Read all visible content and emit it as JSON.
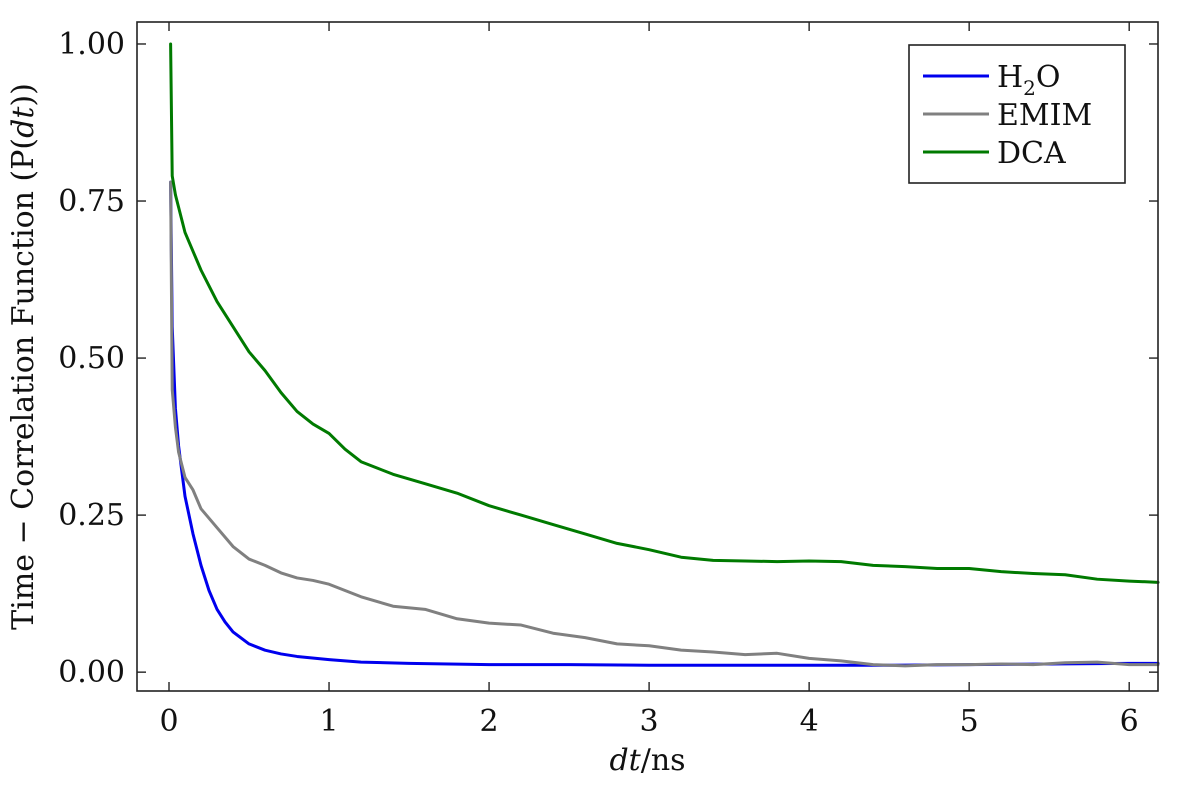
{
  "chart_data": {
    "type": "line",
    "xlabel": "dt/ns",
    "ylabel": "Time − Correlation Function (P(dt))",
    "xlim": [
      -0.2,
      6.18
    ],
    "ylim": [
      -0.03,
      1.035
    ],
    "xticks": [
      0,
      1,
      2,
      3,
      4,
      5,
      6
    ],
    "xtick_labels": [
      "0",
      "1",
      "2",
      "3",
      "4",
      "5",
      "6"
    ],
    "yticks": [
      0.0,
      0.25,
      0.5,
      0.75,
      1.0
    ],
    "ytick_labels": [
      "0.00",
      "0.25",
      "0.50",
      "0.75",
      "1.00"
    ],
    "grid": false,
    "legend_position": "top-right",
    "series": [
      {
        "name": "H2O",
        "legend_label": {
          "main": "H",
          "sub": "2",
          "tail": "O"
        },
        "color": "#0000ee",
        "x": [
          0.01,
          0.02,
          0.04,
          0.06,
          0.08,
          0.1,
          0.15,
          0.2,
          0.25,
          0.3,
          0.35,
          0.4,
          0.5,
          0.6,
          0.7,
          0.8,
          1.0,
          1.2,
          1.5,
          2.0,
          2.5,
          3.0,
          3.5,
          4.0,
          4.5,
          5.0,
          5.5,
          6.0,
          6.18
        ],
        "y": [
          0.78,
          0.55,
          0.42,
          0.36,
          0.32,
          0.28,
          0.22,
          0.17,
          0.13,
          0.1,
          0.08,
          0.064,
          0.045,
          0.035,
          0.029,
          0.025,
          0.02,
          0.016,
          0.014,
          0.012,
          0.012,
          0.011,
          0.011,
          0.011,
          0.011,
          0.012,
          0.013,
          0.014,
          0.014
        ]
      },
      {
        "name": "EMIM",
        "color": "#808080",
        "x": [
          0.01,
          0.02,
          0.04,
          0.06,
          0.08,
          0.1,
          0.15,
          0.2,
          0.3,
          0.4,
          0.5,
          0.6,
          0.7,
          0.8,
          0.9,
          1.0,
          1.2,
          1.4,
          1.6,
          1.8,
          2.0,
          2.2,
          2.4,
          2.6,
          2.8,
          3.0,
          3.2,
          3.4,
          3.6,
          3.8,
          4.0,
          4.2,
          4.4,
          4.6,
          4.8,
          5.0,
          5.2,
          5.4,
          5.6,
          5.8,
          6.0,
          6.18
        ],
        "y": [
          0.78,
          0.45,
          0.39,
          0.35,
          0.33,
          0.31,
          0.29,
          0.26,
          0.23,
          0.2,
          0.18,
          0.17,
          0.158,
          0.15,
          0.146,
          0.14,
          0.12,
          0.105,
          0.1,
          0.085,
          0.078,
          0.075,
          0.062,
          0.055,
          0.045,
          0.042,
          0.035,
          0.032,
          0.028,
          0.03,
          0.022,
          0.018,
          0.012,
          0.01,
          0.012,
          0.012,
          0.013,
          0.012,
          0.015,
          0.016,
          0.012,
          0.012
        ]
      },
      {
        "name": "DCA",
        "color": "#007a00",
        "x": [
          0.01,
          0.02,
          0.04,
          0.06,
          0.08,
          0.1,
          0.15,
          0.2,
          0.3,
          0.4,
          0.5,
          0.6,
          0.7,
          0.8,
          0.9,
          1.0,
          1.1,
          1.2,
          1.3,
          1.4,
          1.6,
          1.8,
          2.0,
          2.2,
          2.4,
          2.6,
          2.8,
          3.0,
          3.2,
          3.4,
          3.6,
          3.8,
          4.0,
          4.2,
          4.4,
          4.6,
          4.8,
          5.0,
          5.2,
          5.4,
          5.6,
          5.8,
          6.0,
          6.18
        ],
        "y": [
          1.0,
          0.79,
          0.76,
          0.74,
          0.72,
          0.7,
          0.67,
          0.64,
          0.59,
          0.55,
          0.51,
          0.48,
          0.445,
          0.415,
          0.395,
          0.38,
          0.355,
          0.335,
          0.325,
          0.315,
          0.3,
          0.285,
          0.265,
          0.25,
          0.235,
          0.22,
          0.205,
          0.195,
          0.183,
          0.178,
          0.177,
          0.176,
          0.177,
          0.176,
          0.17,
          0.168,
          0.165,
          0.165,
          0.16,
          0.157,
          0.155,
          0.148,
          0.145,
          0.143
        ]
      }
    ]
  }
}
